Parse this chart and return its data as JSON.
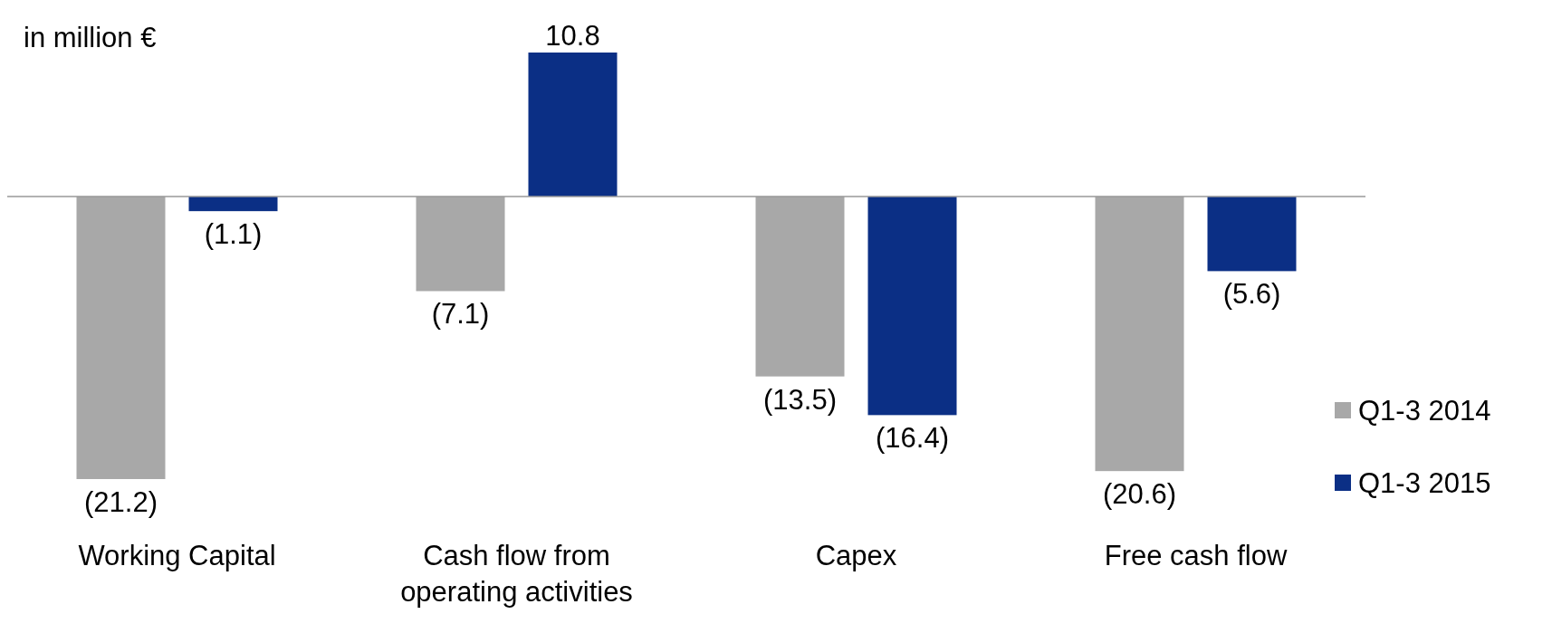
{
  "chart_data": {
    "type": "bar",
    "title": "in million €",
    "categories": [
      "Working Capital",
      "Cash flow from operating activities",
      "Capex",
      "Free cash flow"
    ],
    "series": [
      {
        "name": "Q1-3 2014",
        "color": "#a8a8a8",
        "values": [
          -21.2,
          -7.1,
          -13.5,
          -20.6
        ],
        "value_labels": [
          "(21.2)",
          "(7.1)",
          "(13.5)",
          "(20.6)"
        ]
      },
      {
        "name": "Q1-3 2015",
        "color": "#0b2f85",
        "values": [
          -1.1,
          10.8,
          -16.4,
          -5.6
        ],
        "value_labels": [
          "(1.1)",
          "10.8",
          "(16.4)",
          "(5.6)"
        ]
      }
    ],
    "legend": "right"
  }
}
